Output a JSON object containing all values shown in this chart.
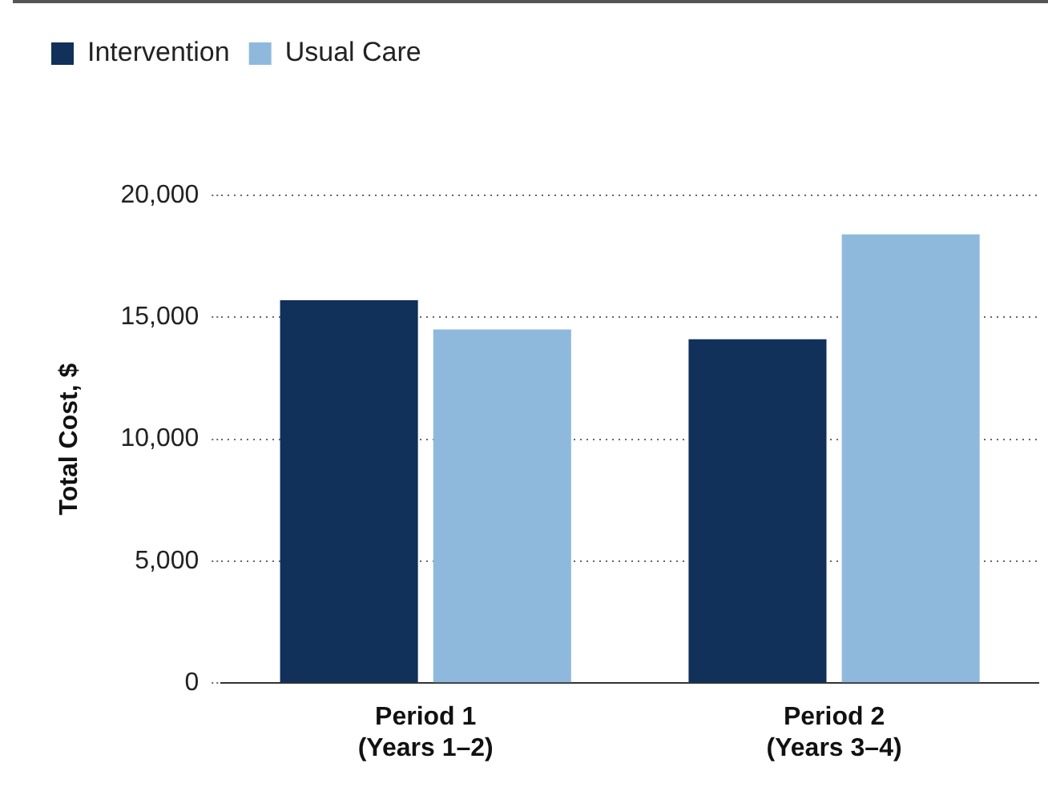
{
  "chart_data": {
    "type": "bar",
    "ylabel": "Total Cost, $",
    "categories": [
      "Period 1\n(Years 1–2)",
      "Period 2\n(Years 3–4)"
    ],
    "series": [
      {
        "name": "Intervention",
        "color": "#11305a",
        "values": [
          15700,
          14100
        ]
      },
      {
        "name": "Usual Care",
        "color": "#8fb9dc",
        "values": [
          14500,
          18400
        ]
      }
    ],
    "ylim": [
      0,
      20000
    ],
    "yticks": [
      {
        "value": 0,
        "label": "0"
      },
      {
        "value": 5000,
        "label": "5,000"
      },
      {
        "value": 10000,
        "label": "10,000"
      },
      {
        "value": 15000,
        "label": "15,000"
      },
      {
        "value": 20000,
        "label": "20,000"
      }
    ],
    "grid": "y",
    "legend": "top left"
  }
}
